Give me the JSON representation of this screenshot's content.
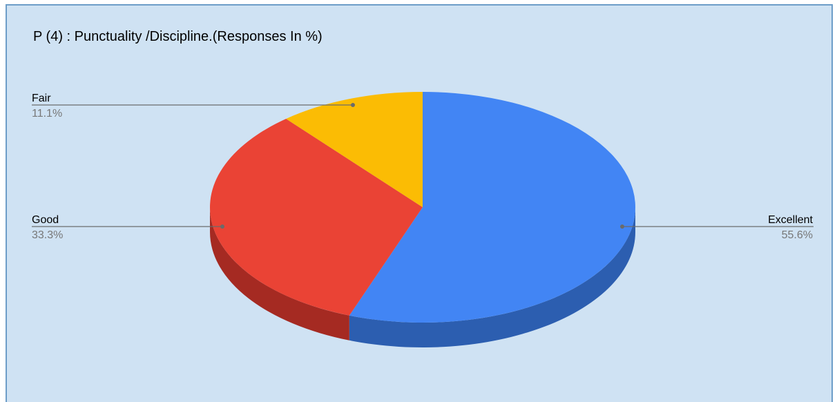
{
  "chart_data": {
    "type": "pie",
    "title": "P (4) : Punctuality /Discipline.(Responses In %)",
    "categories": [
      "Excellent",
      "Good",
      "Fair"
    ],
    "values": [
      55.6,
      33.3,
      11.1
    ],
    "value_labels": [
      "55.6%",
      "33.3%",
      "11.1%"
    ],
    "colors": [
      "#4285f4",
      "#ea4335",
      "#fbbc04"
    ],
    "side_colors": [
      "#2c5eb0",
      "#a52a22",
      "#b8870a"
    ],
    "legend": "labels with leader lines",
    "style": "3d"
  }
}
